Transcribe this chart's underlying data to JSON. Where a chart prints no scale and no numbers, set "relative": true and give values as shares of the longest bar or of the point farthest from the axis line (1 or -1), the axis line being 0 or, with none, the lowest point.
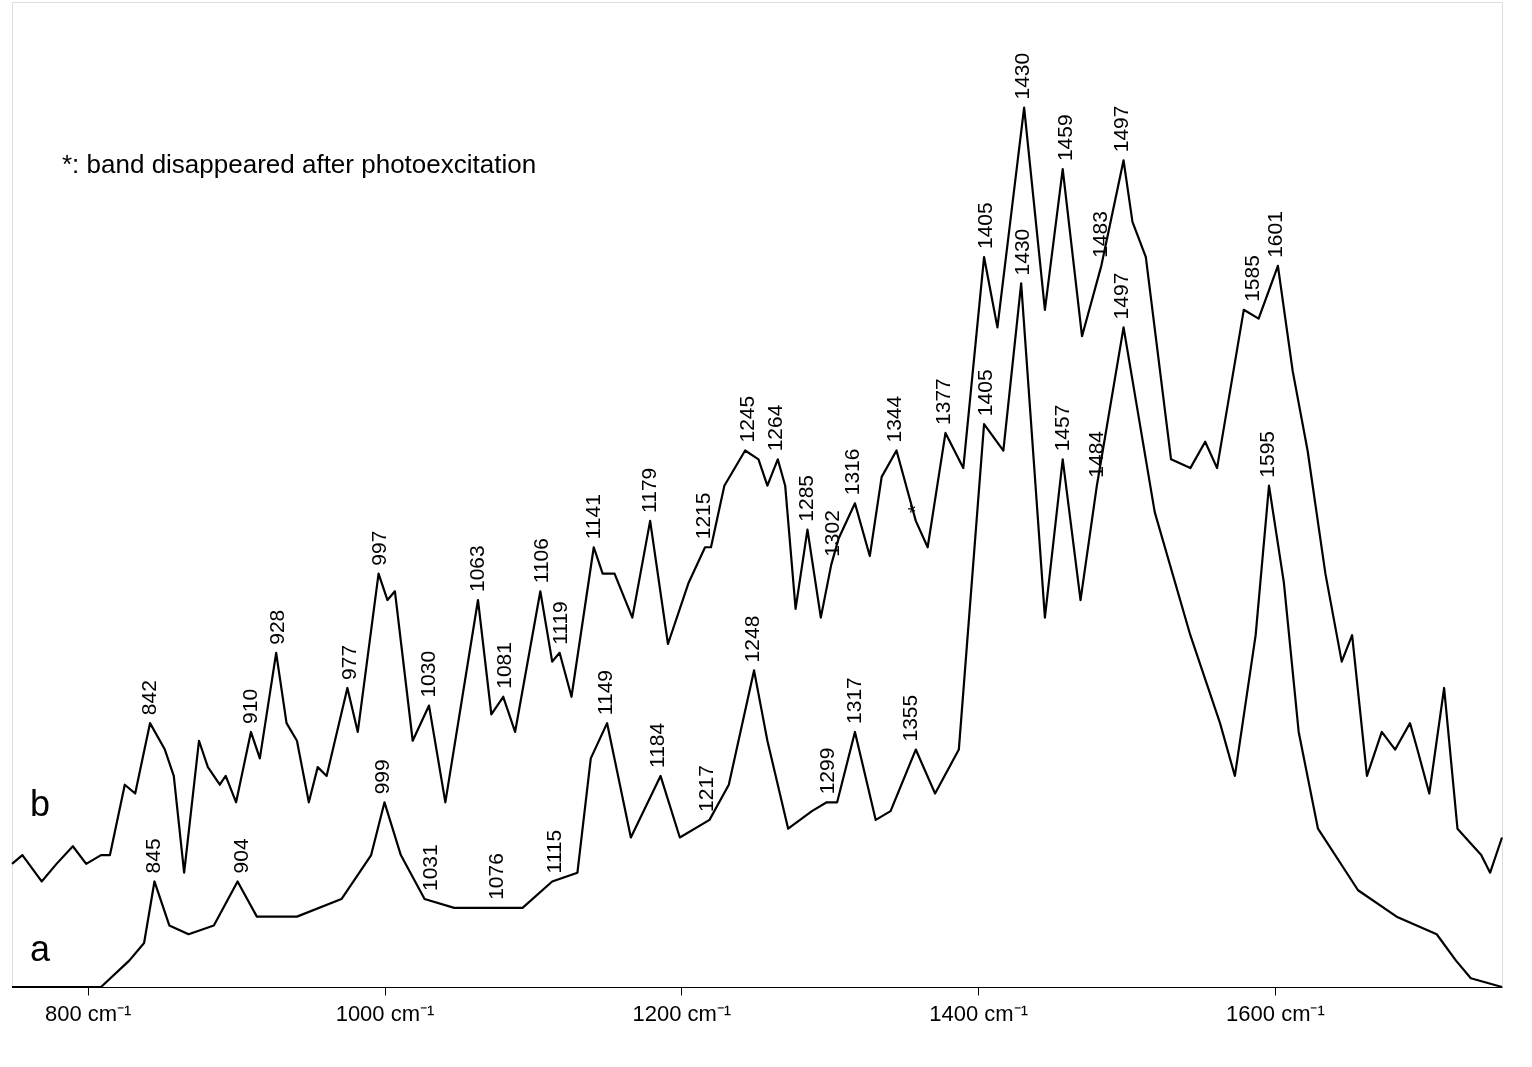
{
  "chart_data": {
    "type": "line",
    "relative": true,
    "grid": false,
    "marker": "none",
    "line_style": "solid",
    "xlim": [
      749,
      1753
    ],
    "xticks": [
      {
        "value": 800,
        "label": "800 cm⁻¹"
      },
      {
        "value": 1000,
        "label": "1000 cm⁻¹"
      },
      {
        "value": 1200,
        "label": "1200 cm⁻¹"
      },
      {
        "value": 1400,
        "label": "1400 cm⁻¹"
      },
      {
        "value": 1600,
        "label": "1600 cm⁻¹"
      }
    ],
    "series": [
      {
        "name": "b",
        "color": "#000000",
        "x": [
          749,
          756,
          769,
          779,
          790,
          799,
          809,
          815,
          825,
          832,
          842,
          852,
          858,
          865,
          875,
          881,
          889,
          893,
          900,
          910,
          916,
          927,
          934,
          941,
          949,
          955,
          961,
          975,
          982,
          996,
          1002,
          1007,
          1019,
          1030,
          1041,
          1063,
          1072,
          1080,
          1088,
          1105,
          1113,
          1118,
          1126,
          1141,
          1147,
          1155,
          1167,
          1179,
          1191,
          1205,
          1216,
          1220,
          1229,
          1243,
          1252,
          1258,
          1265,
          1270,
          1277,
          1285,
          1294,
          1301,
          1306,
          1317,
          1327,
          1335,
          1345,
          1358,
          1366,
          1378,
          1390,
          1404,
          1413,
          1431,
          1445,
          1457,
          1470,
          1483,
          1498,
          1504,
          1513,
          1530,
          1543,
          1553,
          1561,
          1579,
          1589,
          1602,
          1612,
          1622,
          1634,
          1645,
          1652,
          1662,
          1672,
          1681,
          1691,
          1696,
          1704,
          1714,
          1723,
          1739,
          1745,
          1753
        ],
        "values": [
          0.14,
          0.15,
          0.12,
          0.14,
          0.16,
          0.14,
          0.15,
          0.15,
          0.23,
          0.22,
          0.3,
          0.27,
          0.24,
          0.13,
          0.28,
          0.25,
          0.23,
          0.24,
          0.21,
          0.29,
          0.26,
          0.38,
          0.3,
          0.28,
          0.21,
          0.25,
          0.24,
          0.34,
          0.29,
          0.47,
          0.44,
          0.45,
          0.28,
          0.32,
          0.21,
          0.44,
          0.31,
          0.33,
          0.29,
          0.45,
          0.37,
          0.38,
          0.33,
          0.5,
          0.47,
          0.47,
          0.42,
          0.53,
          0.39,
          0.46,
          0.5,
          0.5,
          0.57,
          0.61,
          0.6,
          0.57,
          0.6,
          0.57,
          0.43,
          0.52,
          0.42,
          0.48,
          0.51,
          0.55,
          0.49,
          0.58,
          0.61,
          0.53,
          0.5,
          0.63,
          0.59,
          0.83,
          0.75,
          1.0,
          0.77,
          0.93,
          0.74,
          0.82,
          0.94,
          0.87,
          0.83,
          0.6,
          0.59,
          0.62,
          0.59,
          0.77,
          0.76,
          0.82,
          0.7,
          0.61,
          0.47,
          0.37,
          0.4,
          0.24,
          0.29,
          0.27,
          0.3,
          0.27,
          0.22,
          0.34,
          0.18,
          0.15,
          0.13,
          0.17
        ]
      },
      {
        "name": "a",
        "color": "#000000",
        "x": [
          749,
          809,
          828,
          838,
          845,
          855,
          868,
          885,
          901,
          914,
          941,
          971,
          991,
          1000,
          1011,
          1027,
          1047,
          1073,
          1093,
          1113,
          1130,
          1139,
          1150,
          1166,
          1186,
          1199,
          1219,
          1232,
          1249,
          1258,
          1272,
          1288,
          1298,
          1305,
          1317,
          1331,
          1341,
          1358,
          1371,
          1387,
          1404,
          1417,
          1429,
          1445,
          1457,
          1469,
          1480,
          1498,
          1519,
          1543,
          1563,
          1573,
          1587,
          1596,
          1606,
          1616,
          1629,
          1656,
          1682,
          1709,
          1722,
          1732,
          1753
        ],
        "values": [
          0,
          0,
          0.03,
          0.05,
          0.12,
          0.07,
          0.06,
          0.07,
          0.12,
          0.08,
          0.08,
          0.1,
          0.15,
          0.21,
          0.15,
          0.1,
          0.09,
          0.09,
          0.09,
          0.12,
          0.13,
          0.26,
          0.3,
          0.17,
          0.24,
          0.17,
          0.19,
          0.23,
          0.36,
          0.28,
          0.18,
          0.2,
          0.21,
          0.21,
          0.29,
          0.19,
          0.2,
          0.27,
          0.22,
          0.27,
          0.64,
          0.61,
          0.8,
          0.42,
          0.6,
          0.44,
          0.57,
          0.75,
          0.54,
          0.4,
          0.3,
          0.24,
          0.4,
          0.57,
          0.46,
          0.29,
          0.18,
          0.11,
          0.08,
          0.06,
          0.03,
          0.01,
          0
        ]
      }
    ],
    "annotations": [
      "*: band disappeared after photoexcitation",
      {
        "text": "842",
        "x": 842,
        "y": 0.3
      },
      {
        "text": "910",
        "x": 910,
        "y": 0.29
      },
      {
        "text": "928",
        "x": 928,
        "y": 0.38
      },
      {
        "text": "977",
        "x": 977,
        "y": 0.34
      },
      {
        "text": "997",
        "x": 997,
        "y": 0.47
      },
      {
        "text": "1030",
        "x": 1030,
        "y": 0.32
      },
      {
        "text": "1063",
        "x": 1063,
        "y": 0.44
      },
      {
        "text": "1081",
        "x": 1081,
        "y": 0.33
      },
      {
        "text": "1106",
        "x": 1106,
        "y": 0.45
      },
      {
        "text": "1119",
        "x": 1119,
        "y": 0.38
      },
      {
        "text": "1141",
        "x": 1141,
        "y": 0.5
      },
      {
        "text": "1179",
        "x": 1179,
        "y": 0.53
      },
      {
        "text": "1215",
        "x": 1215,
        "y": 0.5
      },
      {
        "text": "1245",
        "x": 1245,
        "y": 0.61
      },
      {
        "text": "1264",
        "x": 1264,
        "y": 0.6
      },
      {
        "text": "1285",
        "x": 1285,
        "y": 0.52
      },
      {
        "text": "1302",
        "x": 1302,
        "y": 0.48
      },
      {
        "text": "1316",
        "x": 1316,
        "y": 0.55
      },
      {
        "text": "1344",
        "x": 1344,
        "y": 0.61
      },
      {
        "text": "1377",
        "x": 1377,
        "y": 0.63
      },
      {
        "text": "1405",
        "x": 1405,
        "y": 0.83
      },
      {
        "text": "1430",
        "x": 1430,
        "y": 1.0
      },
      {
        "text": "1459",
        "x": 1459,
        "y": 0.93
      },
      {
        "text": "1483",
        "x": 1483,
        "y": 0.82
      },
      {
        "text": "1497",
        "x": 1497,
        "y": 0.94
      },
      {
        "text": "1585",
        "x": 1585,
        "y": 0.77
      },
      {
        "text": "1601",
        "x": 1601,
        "y": 0.82
      },
      {
        "text": "845",
        "x": 845,
        "y": 0.12
      },
      {
        "text": "904",
        "x": 904,
        "y": 0.12
      },
      {
        "text": "999",
        "x": 999,
        "y": 0.21
      },
      {
        "text": "1031",
        "x": 1031,
        "y": 0.1
      },
      {
        "text": "1076",
        "x": 1076,
        "y": 0.09
      },
      {
        "text": "1115",
        "x": 1115,
        "y": 0.12
      },
      {
        "text": "1149",
        "x": 1149,
        "y": 0.3
      },
      {
        "text": "1184",
        "x": 1184,
        "y": 0.24
      },
      {
        "text": "1217",
        "x": 1217,
        "y": 0.19
      },
      {
        "text": "1248",
        "x": 1248,
        "y": 0.36
      },
      {
        "text": "1299",
        "x": 1299,
        "y": 0.21
      },
      {
        "text": "1317",
        "x": 1317,
        "y": 0.29
      },
      {
        "text": "1355",
        "x": 1355,
        "y": 0.27
      },
      {
        "text": "1405",
        "x": 1405,
        "y": 0.64
      },
      {
        "text": "1430",
        "x": 1430,
        "y": 0.8
      },
      {
        "text": "1457",
        "x": 1457,
        "y": 0.6
      },
      {
        "text": "1484",
        "x": 1480,
        "y": 0.57
      },
      {
        "text": "1497",
        "x": 1497,
        "y": 0.75
      },
      {
        "text": "1595",
        "x": 1595,
        "y": 0.57
      },
      {
        "text": "*",
        "x": 1358,
        "y": 0.53
      }
    ]
  }
}
